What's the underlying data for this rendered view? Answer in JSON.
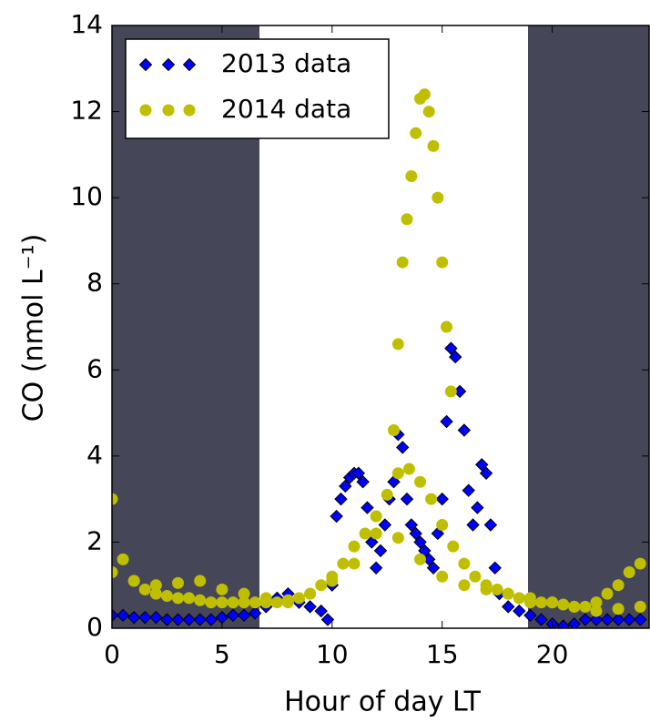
{
  "chart_data": {
    "type": "scatter",
    "xlabel": "Hour of day LT",
    "ylabel": "CO (nmol L⁻¹)",
    "xlim": [
      0,
      24.4
    ],
    "ylim": [
      0,
      14
    ],
    "xticks": [
      0,
      5,
      10,
      15,
      20
    ],
    "yticks": [
      0,
      2,
      4,
      6,
      8,
      10,
      12,
      14
    ],
    "shaded_regions": [
      [
        0,
        6.7
      ],
      [
        18.9,
        24.4
      ]
    ],
    "shade_color": "#464659",
    "legend": "upper left",
    "series": [
      {
        "name": "2013 data",
        "color": "#0000ff",
        "marker": "diamond",
        "x": [
          0,
          0.5,
          1,
          1.5,
          2,
          2.5,
          3,
          3.5,
          4,
          4.5,
          5,
          5.5,
          6,
          6.5,
          7,
          7.5,
          8,
          8.5,
          9,
          9.5,
          9.8,
          10,
          10.2,
          10.4,
          10.6,
          10.8,
          11,
          11.2,
          11.4,
          11.6,
          11.8,
          12,
          12.2,
          12.4,
          12.6,
          12.8,
          13,
          13.2,
          13.4,
          13.6,
          13.8,
          14,
          14.2,
          14.4,
          14.6,
          14.8,
          15,
          15.2,
          15.4,
          15.6,
          15.8,
          16,
          16.2,
          16.4,
          16.6,
          16.8,
          17,
          17.2,
          17.4,
          17.6,
          18,
          18.5,
          19,
          19.5,
          20,
          20.5,
          21,
          21.5,
          22,
          22.5,
          23,
          23.5,
          24
        ],
        "values": [
          0.3,
          0.3,
          0.25,
          0.25,
          0.25,
          0.2,
          0.2,
          0.2,
          0.2,
          0.2,
          0.25,
          0.3,
          0.3,
          0.35,
          0.5,
          0.7,
          0.8,
          0.6,
          0.5,
          0.4,
          0.2,
          1.0,
          2.6,
          3.0,
          3.3,
          3.5,
          3.6,
          3.6,
          3.4,
          2.8,
          2.0,
          1.4,
          1.8,
          2.4,
          3.0,
          3.4,
          4.5,
          4.2,
          3.0,
          2.4,
          2.2,
          2.0,
          1.8,
          1.6,
          1.4,
          2.2,
          3.0,
          4.8,
          6.5,
          6.3,
          5.5,
          4.6,
          3.2,
          2.4,
          2.8,
          3.8,
          3.6,
          2.4,
          1.4,
          0.8,
          0.5,
          0.4,
          0.3,
          0.2,
          0.1,
          0.05,
          0.1,
          0.2,
          0.2,
          0.2,
          0.2,
          0.2,
          0.2
        ]
      },
      {
        "name": "2014 data",
        "color": "#bfbf00",
        "marker": "circle",
        "x": [
          12.8,
          13,
          13.2,
          13.4,
          13.6,
          13.8,
          14,
          14.2,
          14.4,
          14.6,
          14.8,
          15,
          15.2,
          15.4,
          0,
          0.5,
          1,
          1.5,
          2,
          2.5,
          3,
          3.5,
          4,
          4.5,
          5,
          5.5,
          6,
          6.5,
          7,
          7.5,
          8,
          8.5,
          9,
          9.5,
          10,
          10.5,
          11,
          11.5,
          12,
          12.5,
          13,
          13.5,
          14,
          14.5,
          15,
          15.5,
          16,
          16.5,
          17,
          17.5,
          18,
          18.5,
          19,
          19.5,
          20,
          20.5,
          21,
          21.5,
          22,
          22.5,
          23,
          23.5,
          24,
          0,
          1,
          2,
          3,
          4,
          5,
          6,
          7,
          8,
          9,
          10,
          11,
          12,
          13,
          14,
          15,
          16,
          17,
          18,
          19,
          20,
          21,
          22,
          23,
          24
        ],
        "values": [
          4.6,
          6.6,
          8.5,
          9.5,
          10.5,
          11.5,
          12.3,
          12.4,
          12.0,
          11.2,
          10.0,
          8.5,
          7.0,
          5.5,
          3.0,
          1.6,
          1.1,
          0.9,
          0.8,
          0.75,
          0.7,
          0.7,
          0.65,
          0.6,
          0.6,
          0.6,
          0.6,
          0.6,
          0.6,
          0.6,
          0.65,
          0.7,
          0.8,
          1.0,
          1.2,
          1.5,
          1.9,
          2.2,
          2.6,
          3.1,
          3.6,
          3.7,
          3.4,
          3.0,
          2.4,
          1.9,
          1.5,
          1.2,
          1.0,
          0.9,
          0.8,
          0.7,
          0.6,
          0.6,
          0.6,
          0.55,
          0.5,
          0.5,
          0.6,
          0.8,
          1.0,
          1.3,
          1.5,
          1.3,
          1.1,
          1.0,
          1.05,
          1.1,
          0.9,
          0.8,
          0.7,
          0.6,
          0.8,
          1.1,
          1.5,
          2.2,
          2.1,
          1.6,
          1.2,
          1.0,
          0.9,
          0.8,
          0.7,
          0.6,
          0.5,
          0.4,
          0.45,
          0.5
        ]
      }
    ]
  }
}
